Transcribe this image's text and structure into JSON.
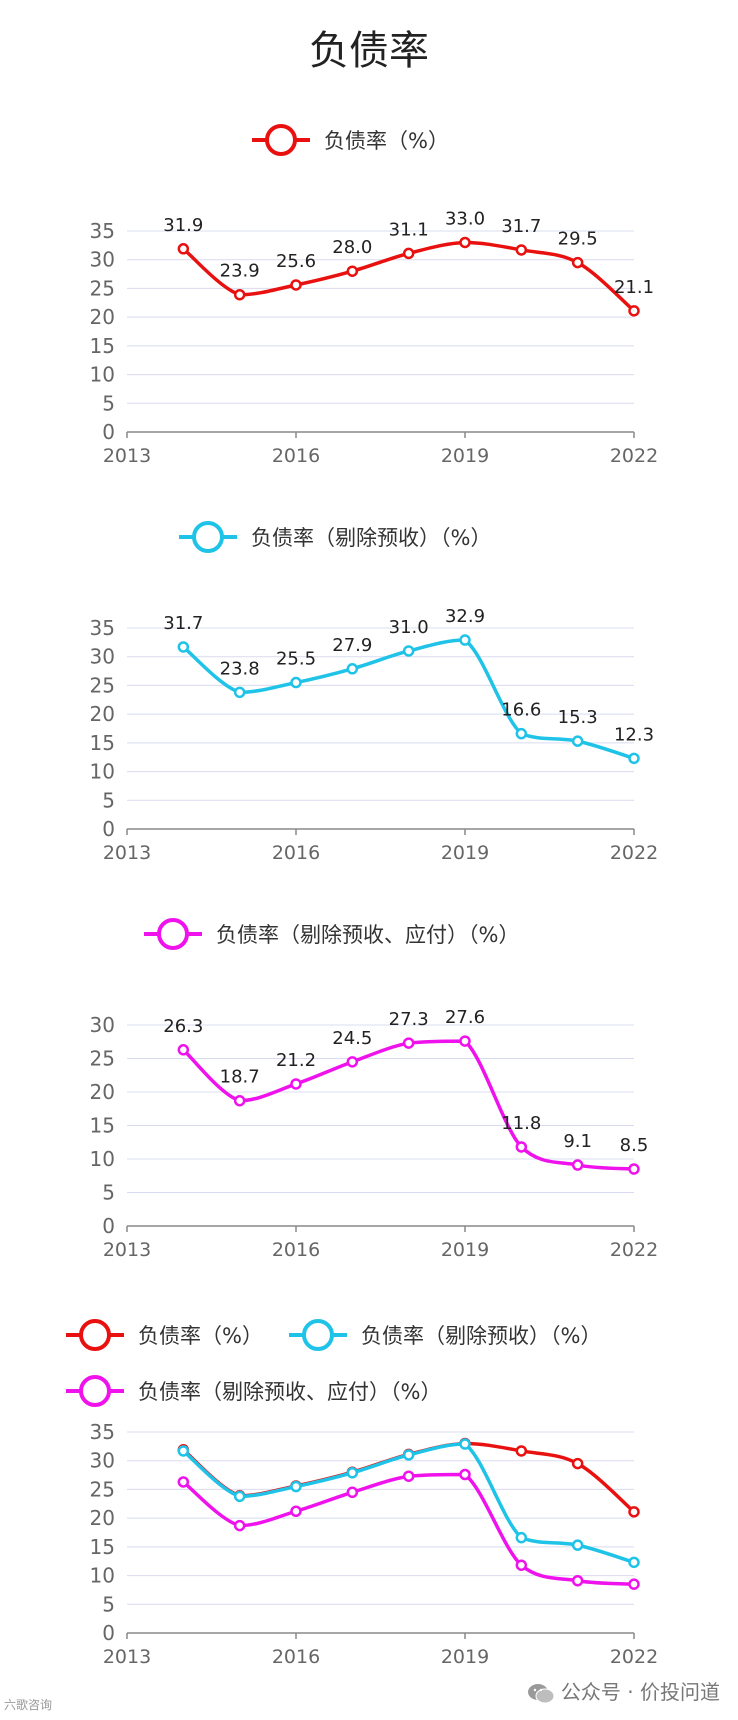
{
  "page_title": "负债率",
  "colors": {
    "red": "#e8110f",
    "cyan": "#1fc3e8",
    "magenta": "#ef12ec",
    "grid": "#d9dcf0",
    "axis": "#888888"
  },
  "chart_data": [
    {
      "type": "line",
      "legend": [
        "负债率（%）"
      ],
      "x": [
        2014,
        2015,
        2016,
        2017,
        2018,
        2019,
        2020,
        2021,
        2022
      ],
      "xlim": [
        2013,
        2022
      ],
      "xticks": [
        "2013",
        "2016",
        "2019",
        "2022"
      ],
      "ylim": [
        0,
        35
      ],
      "yticks": [
        "0",
        "5",
        "10",
        "15",
        "20",
        "25",
        "30",
        "35"
      ],
      "data_labels": true,
      "series": [
        {
          "name": "负债率（%）",
          "color": "red",
          "values": [
            31.9,
            23.9,
            25.6,
            28.0,
            31.1,
            33.0,
            31.7,
            29.5,
            21.1
          ],
          "labels": [
            "31.9",
            "23.9",
            "25.6",
            "28.0",
            "31.1",
            "33.0",
            "31.7",
            "29.5",
            "21.1"
          ]
        }
      ]
    },
    {
      "type": "line",
      "legend": [
        "负债率（剔除预收）（%）"
      ],
      "x": [
        2014,
        2015,
        2016,
        2017,
        2018,
        2019,
        2020,
        2021,
        2022
      ],
      "xlim": [
        2013,
        2022
      ],
      "xticks": [
        "2013",
        "2016",
        "2019",
        "2022"
      ],
      "ylim": [
        0,
        35
      ],
      "yticks": [
        "0",
        "5",
        "10",
        "15",
        "20",
        "25",
        "30",
        "35"
      ],
      "data_labels": true,
      "series": [
        {
          "name": "负债率（剔除预收）（%）",
          "color": "cyan",
          "values": [
            31.7,
            23.8,
            25.5,
            27.9,
            31.0,
            32.9,
            16.6,
            15.3,
            12.3
          ],
          "labels": [
            "31.7",
            "23.8",
            "25.5",
            "27.9",
            "31.0",
            "32.9",
            "16.6",
            "15.3",
            "12.3"
          ]
        }
      ]
    },
    {
      "type": "line",
      "legend": [
        "负债率（剔除预收、应付）（%）"
      ],
      "x": [
        2014,
        2015,
        2016,
        2017,
        2018,
        2019,
        2020,
        2021,
        2022
      ],
      "xlim": [
        2013,
        2022
      ],
      "xticks": [
        "2013",
        "2016",
        "2019",
        "2022"
      ],
      "ylim": [
        0,
        30
      ],
      "yticks": [
        "0",
        "5",
        "10",
        "15",
        "20",
        "25",
        "30"
      ],
      "data_labels": true,
      "series": [
        {
          "name": "负债率（剔除预收、应付）（%）",
          "color": "magenta",
          "values": [
            26.3,
            18.7,
            21.2,
            24.5,
            27.3,
            27.6,
            11.8,
            9.1,
            8.5
          ],
          "labels": [
            "26.3",
            "18.7",
            "21.2",
            "24.5",
            "27.3",
            "27.6",
            "11.8",
            "9.1",
            "8.5"
          ]
        }
      ]
    },
    {
      "type": "line",
      "legend": [
        "负债率（%）",
        "负债率（剔除预收）（%）",
        "负债率（剔除预收、应付）（%）"
      ],
      "x": [
        2014,
        2015,
        2016,
        2017,
        2018,
        2019,
        2020,
        2021,
        2022
      ],
      "xlim": [
        2013,
        2022
      ],
      "xticks": [
        "2013",
        "2016",
        "2019",
        "2022"
      ],
      "ylim": [
        0,
        35
      ],
      "yticks": [
        "0",
        "5",
        "10",
        "15",
        "20",
        "25",
        "30",
        "35"
      ],
      "data_labels": false,
      "series": [
        {
          "name": "负债率（%）",
          "color": "red",
          "values": [
            31.9,
            23.9,
            25.6,
            28.0,
            31.1,
            33.0,
            31.7,
            29.5,
            21.1
          ]
        },
        {
          "name": "负债率（剔除预收）（%）",
          "color": "cyan",
          "values": [
            31.7,
            23.8,
            25.5,
            27.9,
            31.0,
            32.9,
            16.6,
            15.3,
            12.3
          ]
        },
        {
          "name": "负债率（剔除预收、应付）（%）",
          "color": "magenta",
          "values": [
            26.3,
            18.7,
            21.2,
            24.5,
            27.3,
            27.6,
            11.8,
            9.1,
            8.5
          ]
        }
      ]
    }
  ],
  "footer": {
    "left_watermark": "六歌咨询",
    "right_source": "公众号 · 价投问道"
  }
}
